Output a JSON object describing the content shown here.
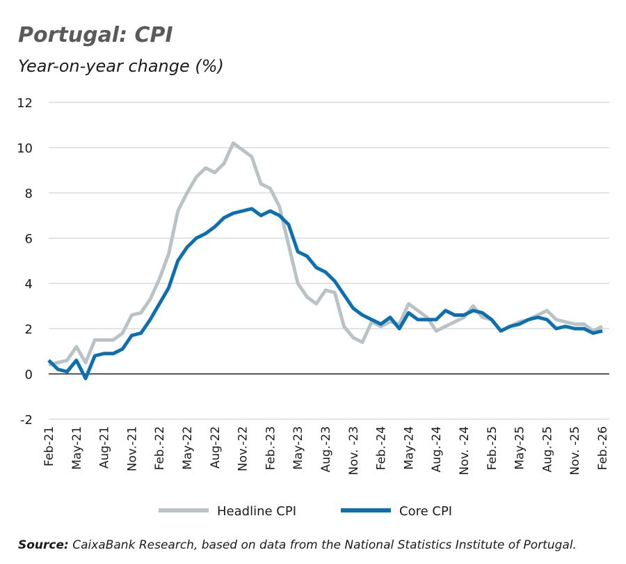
{
  "chart_data": {
    "type": "line",
    "title": "Portugal: CPI",
    "subtitle": "Year-on-year change (%)",
    "source_label": "Source:",
    "source_text": "CaixaBank Research, based on data from the National Statistics Institute of Portugal.",
    "categories": [
      "Feb-21",
      null,
      null,
      "May-21",
      null,
      null,
      "Aug-21",
      null,
      null,
      "Nov.-21",
      null,
      null,
      "Feb.-22",
      null,
      null,
      "May-22",
      null,
      null,
      "Aug-22",
      null,
      null,
      "Nov.-22",
      null,
      null,
      "Feb.-23",
      null,
      null,
      "May-23",
      null,
      null,
      "Aug.-23",
      null,
      null,
      "Nov. -23",
      null,
      null,
      "Feb.-24",
      null,
      null,
      "May-24",
      null,
      null,
      "Aug.-24",
      null,
      null,
      "Nov. -24",
      null,
      null,
      "Feb.-25",
      null,
      null,
      "May-25",
      null,
      null,
      "Aug.-25",
      null,
      null,
      "Nov. -25",
      null,
      null,
      "Feb.-26"
    ],
    "series": [
      {
        "name": "Headline CPI",
        "color": "#b9c3c6",
        "values": [
          0.4,
          0.5,
          0.6,
          1.2,
          0.5,
          1.5,
          1.5,
          1.5,
          1.8,
          2.6,
          2.7,
          3.3,
          4.2,
          5.3,
          7.2,
          8.0,
          8.7,
          9.1,
          8.9,
          9.3,
          10.2,
          9.9,
          9.6,
          8.4,
          8.2,
          7.4,
          5.7,
          4.0,
          3.4,
          3.1,
          3.7,
          3.6,
          2.1,
          1.6,
          1.4,
          2.3,
          2.1,
          2.3,
          2.2,
          3.1,
          2.8,
          2.5,
          1.9,
          2.1,
          2.3,
          2.5,
          3.0,
          2.5,
          2.4,
          1.9,
          2.1,
          2.3,
          2.4,
          2.6,
          2.8,
          2.4,
          2.3,
          2.2,
          2.2,
          1.9,
          2.1
        ]
      },
      {
        "name": "Core CPI",
        "color": "#0b6fb0",
        "values": [
          0.6,
          0.2,
          0.1,
          0.6,
          -0.2,
          0.8,
          0.9,
          0.9,
          1.1,
          1.7,
          1.8,
          2.4,
          3.1,
          3.8,
          5.0,
          5.6,
          6.0,
          6.2,
          6.5,
          6.9,
          7.1,
          7.2,
          7.3,
          7.0,
          7.2,
          7.0,
          6.6,
          5.4,
          5.2,
          4.7,
          4.5,
          4.1,
          3.5,
          2.9,
          2.6,
          2.4,
          2.2,
          2.5,
          2.0,
          2.7,
          2.4,
          2.4,
          2.4,
          2.8,
          2.6,
          2.6,
          2.8,
          2.7,
          2.4,
          1.9,
          2.1,
          2.2,
          2.4,
          2.5,
          2.4,
          2.0,
          2.1,
          2.0,
          2.0,
          1.8,
          1.9
        ]
      }
    ],
    "ylim": [
      -2,
      12
    ],
    "yticks": [
      -2,
      0,
      2,
      4,
      6,
      8,
      10,
      12
    ],
    "grid": true
  }
}
